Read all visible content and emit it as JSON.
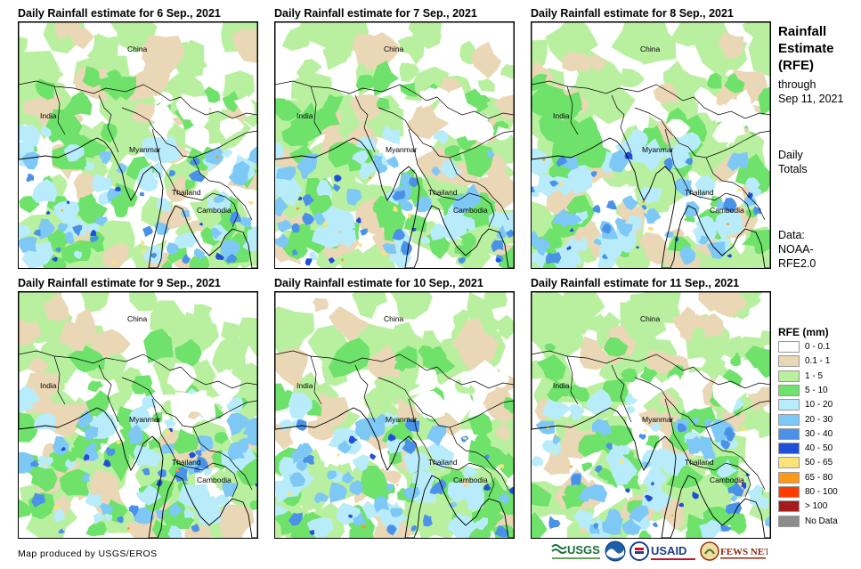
{
  "panels": [
    {
      "title": "Daily Rainfall estimate for 6 Sep., 2021",
      "seed": 11
    },
    {
      "title": "Daily Rainfall estimate for 7 Sep., 2021",
      "seed": 23
    },
    {
      "title": "Daily Rainfall estimate for 8 Sep., 2021",
      "seed": 37
    },
    {
      "title": "Daily Rainfall estimate for 9 Sep., 2021",
      "seed": 41
    },
    {
      "title": "Daily Rainfall estimate for 10 Sep., 2021",
      "seed": 53
    },
    {
      "title": "Daily Rainfall estimate for 11 Sep., 2021",
      "seed": 67
    }
  ],
  "map_labels": {
    "china": "China",
    "india": "India",
    "myanmar": "Myanmar",
    "thailand": "Thailand",
    "cambodia": "Cambodia"
  },
  "sidebar": {
    "title_line1": "Rainfall",
    "title_line2": "Estimate",
    "title_line3": "(RFE)",
    "through_line1": "through",
    "through_line2": "Sep 11, 2021",
    "daily_line1": "Daily",
    "daily_line2": "Totals",
    "data_line1": "Data:",
    "data_line2": "NOAA-",
    "data_line3": "RFE2.0"
  },
  "legend": {
    "title": "RFE (mm)",
    "items": [
      {
        "label": "0 - 0.1",
        "color": "#ffffff"
      },
      {
        "label": "0.1 - 1",
        "color": "#ead7b5"
      },
      {
        "label": "1 - 5",
        "color": "#b9f0a0"
      },
      {
        "label": "5 - 10",
        "color": "#6ee26a"
      },
      {
        "label": "10 - 20",
        "color": "#b8ecfb"
      },
      {
        "label": "20 - 30",
        "color": "#7ec8f5"
      },
      {
        "label": "30 - 40",
        "color": "#4a92e8"
      },
      {
        "label": "40 - 50",
        "color": "#1f4fd8"
      },
      {
        "label": "50 - 65",
        "color": "#fce27a"
      },
      {
        "label": "65 - 80",
        "color": "#fb9a1a"
      },
      {
        "label": "80 - 100",
        "color": "#ff3c00"
      },
      {
        "label": "> 100",
        "color": "#a51b1b"
      },
      {
        "label": "No Data",
        "color": "#8c8c8c"
      }
    ]
  },
  "footer": {
    "credit": "Map produced by USGS/EROS",
    "logo_usgs": "USGS",
    "logo_usaid": "USAID",
    "logo_fews": "FEWS NET"
  }
}
